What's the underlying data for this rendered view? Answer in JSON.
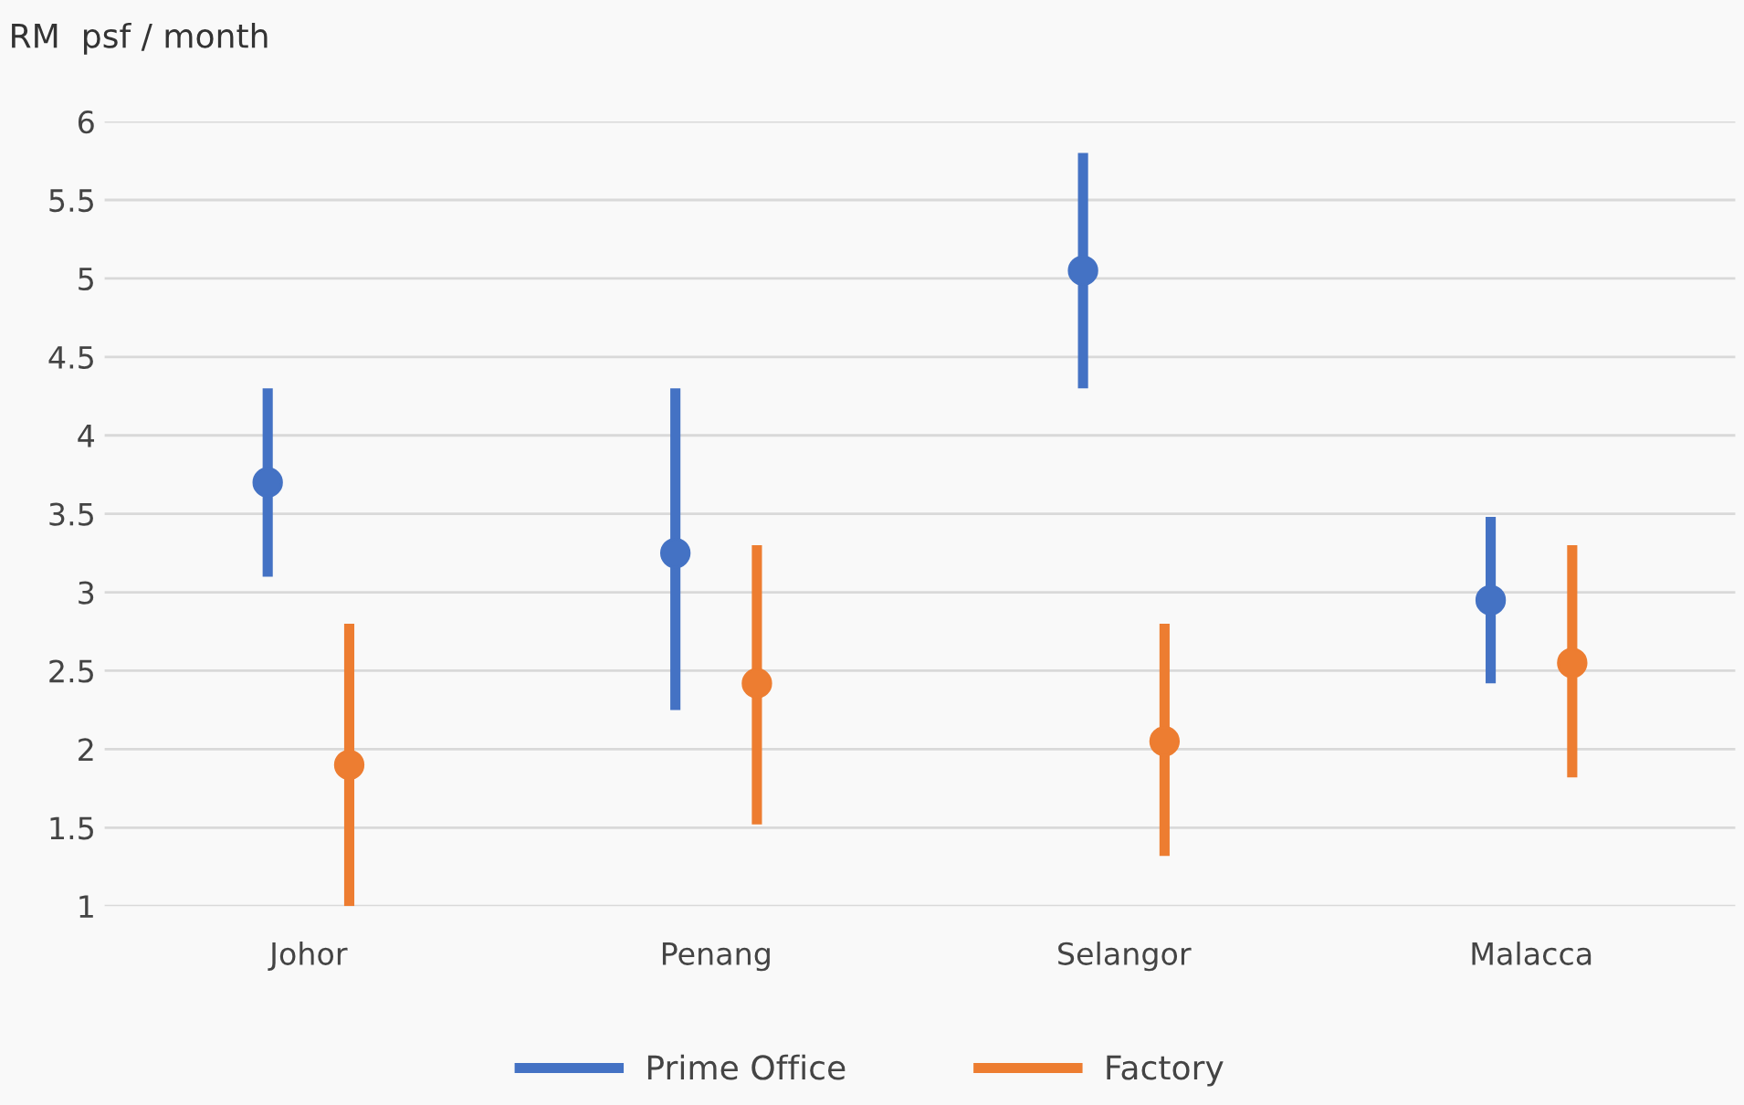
{
  "chart_data": {
    "type": "scatter",
    "ylabel": "RM  psf / month",
    "categories": [
      "Johor",
      "Penang",
      "Selangor",
      "Malacca"
    ],
    "series": [
      {
        "name": "Prime Office",
        "color": "#4472c4",
        "values": [
          3.7,
          3.25,
          5.05,
          2.95
        ],
        "errors": [
          [
            3.1,
            4.3
          ],
          [
            2.25,
            4.3
          ],
          [
            4.3,
            5.8
          ],
          [
            2.42,
            3.48
          ]
        ]
      },
      {
        "name": "Factory",
        "color": "#ed7d31",
        "values": [
          1.9,
          2.42,
          2.05,
          2.55
        ],
        "errors": [
          [
            1.0,
            2.8
          ],
          [
            1.52,
            3.3
          ],
          [
            1.32,
            2.8
          ],
          [
            1.82,
            3.3
          ]
        ]
      }
    ],
    "ylim": [
      1,
      6
    ],
    "yticks": [
      1,
      1.5,
      2,
      2.5,
      3,
      3.5,
      4,
      4.5,
      5,
      5.5,
      6
    ],
    "grid": "y",
    "legend": "bottom",
    "marker": "circle"
  }
}
